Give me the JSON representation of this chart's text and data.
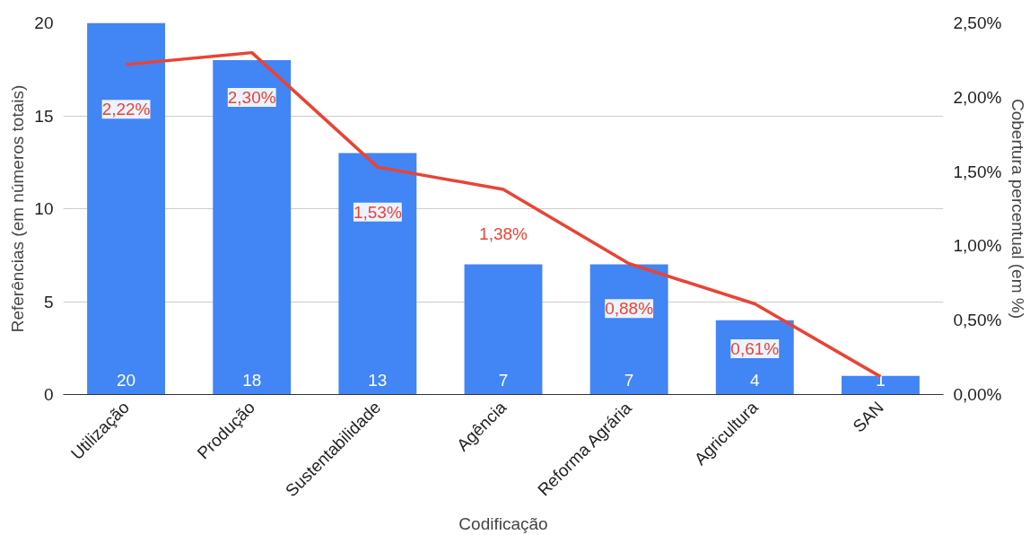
{
  "chart_data": {
    "type": "bar",
    "xlabel": "Codificação",
    "ylabel": "Referências (em números totais)",
    "y2label": "Cobertura percentual (em %)",
    "categories": [
      "Utilização",
      "Produção",
      "Sustentabilidade",
      "Agência",
      "Reforma Agrária",
      "Agricultura",
      "SAN"
    ],
    "series": [
      {
        "color": "#4285f4",
        "values": [
          20,
          18,
          13,
          7,
          7,
          4,
          1
        ],
        "data_labels": true
      },
      {
        "type": "line",
        "axis": "y2",
        "color": "#ea4335",
        "values": [
          2.22,
          2.3,
          1.53,
          1.38,
          0.88,
          0.61,
          0.12
        ],
        "value_labels": [
          "2,22%",
          "2,30%",
          "1,53%",
          "1,38%",
          "0,88%",
          "0,61%",
          null
        ],
        "marker": "none",
        "line_style": "solid"
      }
    ],
    "ylim": [
      0,
      20
    ],
    "yticks": [
      0,
      5,
      10,
      15,
      20
    ],
    "y2lim": [
      0,
      2.5
    ],
    "y2ticks": [
      {
        "value": 0,
        "label": "0,00%"
      },
      {
        "value": 0.5,
        "label": "0,50%"
      },
      {
        "value": 1,
        "label": "1,00%"
      },
      {
        "value": 1.5,
        "label": "1,50%"
      },
      {
        "value": 2,
        "label": "2,00%"
      },
      {
        "value": 2.5,
        "label": "2,50%"
      }
    ],
    "grid": "y"
  }
}
